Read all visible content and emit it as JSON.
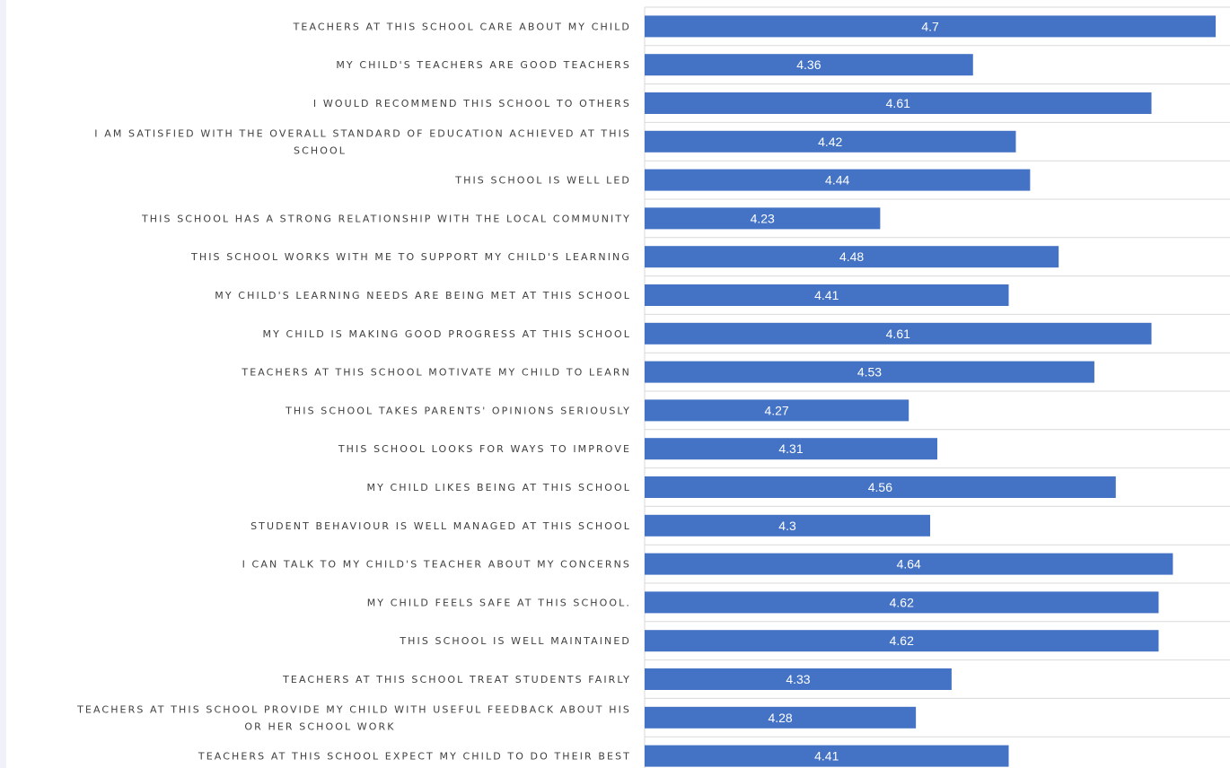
{
  "chart_data": {
    "type": "bar",
    "orientation": "horizontal",
    "title": "",
    "xlabel": "",
    "ylabel": "",
    "xlim": [
      3.9,
      4.72
    ],
    "grid": true,
    "legend": "none",
    "colors": {
      "bar": "#4472c4",
      "gridline": "#d9d9d9",
      "label_text": "#404040",
      "value_text": "#ffffff"
    },
    "categories": [
      [
        "TEACHERS AT THIS SCHOOL CARE ABOUT MY CHILD"
      ],
      [
        "MY CHILD'S TEACHERS ARE GOOD TEACHERS"
      ],
      [
        "I WOULD RECOMMEND THIS SCHOOL TO OTHERS"
      ],
      [
        "I AM SATISFIED WITH THE OVERALL STANDARD OF EDUCATION ACHIEVED AT THIS",
        "SCHOOL"
      ],
      [
        "THIS SCHOOL IS WELL LED"
      ],
      [
        "THIS SCHOOL HAS A STRONG RELATIONSHIP WITH THE LOCAL COMMUNITY"
      ],
      [
        "THIS SCHOOL WORKS WITH ME TO SUPPORT MY CHILD'S LEARNING"
      ],
      [
        "MY CHILD'S LEARNING NEEDS ARE BEING MET AT THIS SCHOOL"
      ],
      [
        "MY CHILD IS MAKING GOOD PROGRESS AT THIS SCHOOL"
      ],
      [
        "TEACHERS AT THIS SCHOOL MOTIVATE MY CHILD TO LEARN"
      ],
      [
        "THIS SCHOOL TAKES PARENTS' OPINIONS SERIOUSLY"
      ],
      [
        "THIS SCHOOL LOOKS FOR WAYS TO IMPROVE"
      ],
      [
        "MY CHILD LIKES BEING AT THIS SCHOOL"
      ],
      [
        "STUDENT BEHAVIOUR IS WELL MANAGED AT THIS SCHOOL"
      ],
      [
        "I CAN TALK TO MY CHILD'S TEACHER ABOUT MY CONCERNS"
      ],
      [
        "MY CHILD FEELS SAFE AT THIS SCHOOL."
      ],
      [
        "THIS SCHOOL IS WELL MAINTAINED"
      ],
      [
        "TEACHERS AT THIS SCHOOL TREAT STUDENTS FAIRLY"
      ],
      [
        "TEACHERS AT THIS SCHOOL PROVIDE MY CHILD WITH USEFUL FEEDBACK ABOUT HIS",
        "OR HER SCHOOL WORK"
      ],
      [
        "TEACHERS AT THIS SCHOOL EXPECT MY CHILD TO DO THEIR BEST"
      ]
    ],
    "values": [
      4.7,
      4.36,
      4.61,
      4.42,
      4.44,
      4.23,
      4.48,
      4.41,
      4.61,
      4.53,
      4.27,
      4.31,
      4.56,
      4.3,
      4.64,
      4.62,
      4.62,
      4.33,
      4.28,
      4.41
    ],
    "value_labels": [
      "4.7",
      "4.36",
      "4.61",
      "4.42",
      "4.44",
      "4.23",
      "4.48",
      "4.41",
      "4.61",
      "4.53",
      "4.27",
      "4.31",
      "4.56",
      "4.3",
      "4.64",
      "4.62",
      "4.62",
      "4.33",
      "4.28",
      "4.41"
    ]
  }
}
